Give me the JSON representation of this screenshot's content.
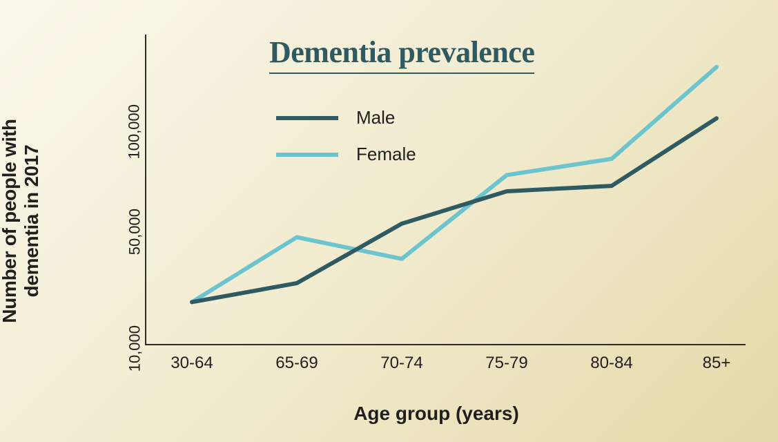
{
  "chart": {
    "type": "line",
    "title": "Dementia prevalence",
    "title_fontsize": 44,
    "title_color": "#2f5a61",
    "title_underline_color": "#2f5a61",
    "background_gradient": [
      "#fbf7ea",
      "#f0eacc",
      "#e4d9a8"
    ],
    "xlabel": "Age group (years)",
    "ylabel_line1": "Number of people with",
    "ylabel_line2": "dementia in 2017",
    "label_fontsize": 28,
    "label_color": "#201f1e",
    "axis_font_family": "Arial, Helvetica, sans-serif",
    "axis_color": "#2c2b29",
    "axis_linewidth": 4,
    "xticks": [
      "30-64",
      "65-69",
      "70-74",
      "75-79",
      "80-84",
      "85+"
    ],
    "yticks": [
      "10,000",
      "50,000",
      "100,000"
    ],
    "ytick_values_log": [
      4,
      4.69897,
      5
    ],
    "ylim_log": [
      3.9,
      5.05
    ],
    "scale": "log",
    "tick_fontsize": 22,
    "series": [
      {
        "name": "Male",
        "color": "#2f5a61",
        "linewidth": 6,
        "values_log": [
          4.06,
          4.13,
          4.35,
          4.47,
          4.49,
          4.74
        ]
      },
      {
        "name": "Female",
        "color": "#6cc5ce",
        "linewidth": 6,
        "values_log": [
          4.06,
          4.3,
          4.22,
          4.53,
          4.59,
          4.93
        ]
      }
    ],
    "legend": {
      "items": [
        {
          "label": "Male",
          "color": "#2f5a61"
        },
        {
          "label": "Female",
          "color": "#6cc5ce"
        }
      ],
      "swatch_width": 90,
      "swatch_height": 6,
      "label_fontsize": 26
    }
  }
}
